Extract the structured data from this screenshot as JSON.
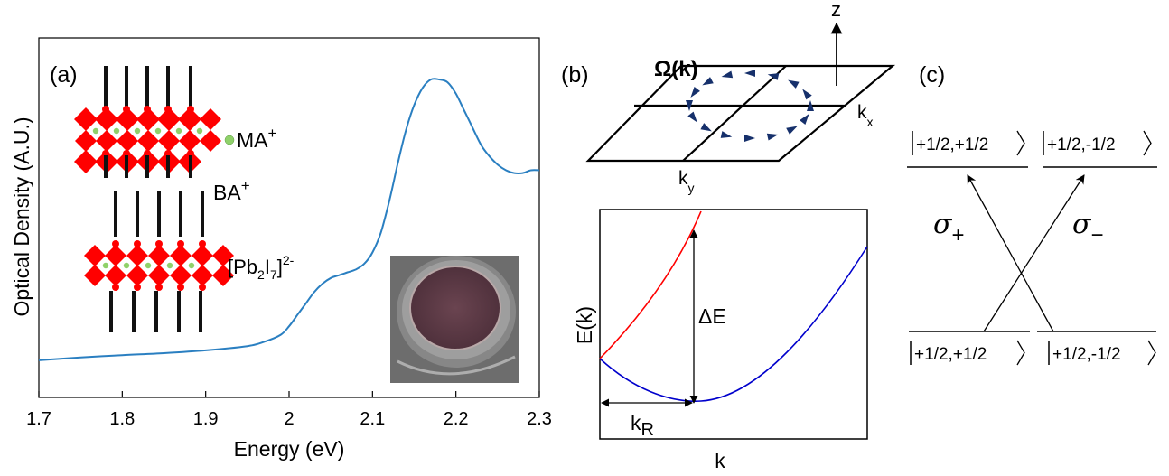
{
  "panel_a": {
    "label": "(a)",
    "y_axis_label": "Optical Density (A.U.)",
    "x_axis_label": "Energy (eV)",
    "structure_labels": {
      "ma": "MA",
      "ma_sup": "+",
      "ba": "BA",
      "ba_sup": "+",
      "pb_open": "[Pb",
      "pb_sub": "2",
      "pb_i": "I",
      "pb_i_sub": "7",
      "pb_close": "]",
      "pb_sup": "2-"
    },
    "colors": {
      "curve": "#2a7fc1",
      "octahedra": "#ff0000",
      "ma_dot": "#8fd16a"
    }
  },
  "chart_data": {
    "type": "line",
    "xlim": [
      1.7,
      2.3
    ],
    "ylim": [
      0,
      1
    ],
    "x_ticks": [
      1.7,
      1.8,
      1.9,
      2.0,
      2.1,
      2.2,
      2.3
    ],
    "x_tick_labels": [
      "1.7",
      "1.8",
      "1.9",
      "2",
      "2.1",
      "2.2",
      "2.3"
    ],
    "y_ticks_labeled": false,
    "series": [
      {
        "x": [
          1.7,
          1.75,
          1.8,
          1.85,
          1.9,
          1.95,
          1.97,
          1.99,
          2.0,
          2.01,
          2.02,
          2.03,
          2.04,
          2.05,
          2.06,
          2.07,
          2.08,
          2.09,
          2.1,
          2.11,
          2.12,
          2.13,
          2.14,
          2.15,
          2.16,
          2.17,
          2.18,
          2.19,
          2.2,
          2.21,
          2.22,
          2.23,
          2.24,
          2.25,
          2.26,
          2.27,
          2.28,
          2.29,
          2.3
        ],
        "y": [
          0.01,
          0.02,
          0.028,
          0.035,
          0.045,
          0.06,
          0.075,
          0.1,
          0.13,
          0.17,
          0.21,
          0.25,
          0.28,
          0.3,
          0.31,
          0.32,
          0.33,
          0.35,
          0.39,
          0.46,
          0.57,
          0.7,
          0.82,
          0.91,
          0.97,
          1.0,
          1.0,
          0.99,
          0.95,
          0.89,
          0.83,
          0.77,
          0.73,
          0.7,
          0.68,
          0.67,
          0.67,
          0.68,
          0.68
        ]
      }
    ]
  },
  "panel_b": {
    "label": "(b)",
    "omega_label": "Ω(k)",
    "z_label": "z",
    "kx_label": "k",
    "kx_sub": "x",
    "ky_label": "k",
    "ky_sub": "y",
    "e_label": "E(k)",
    "k_label": "k",
    "delta_label": "ΔE",
    "kr_label": "k",
    "kr_sub": "R",
    "colors": {
      "upper_band": "#ff0000",
      "lower_band": "#0000cc",
      "arrows": "#16306b"
    }
  },
  "panel_c": {
    "label": "(c)",
    "top_left_state": "+1/2,+1/2",
    "top_right_state": "+1/2,-1/2",
    "bottom_left_state": "+1/2,+1/2",
    "bottom_right_state": "+1/2,-1/2",
    "sigma_plus": "σ",
    "sigma_plus_sub": "+",
    "sigma_minus": "σ",
    "sigma_minus_sub": "−"
  }
}
